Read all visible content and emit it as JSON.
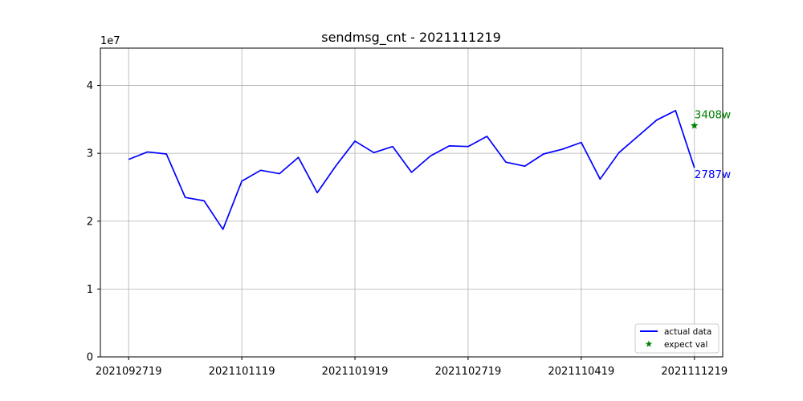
{
  "chart_data": {
    "type": "line",
    "title": "sendmsg_cnt - 2021111219",
    "xlabel": "",
    "ylabel": "",
    "y_scale_label": "1e7",
    "x_tick_labels": [
      "2021092719",
      "2021101119",
      "2021101919",
      "2021102719",
      "2021110419",
      "2021111219"
    ],
    "x_tick_index": [
      0,
      6,
      12,
      18,
      24,
      30
    ],
    "y_ticks": [
      0,
      1,
      2,
      3,
      4
    ],
    "ylim": [
      0,
      4.55
    ],
    "xlim": [
      -1.5,
      31.5
    ],
    "grid": true,
    "legend_position": "lower-right",
    "series": [
      {
        "name": "actual data",
        "color": "#0000ff",
        "values": [
          2.91,
          3.02,
          2.99,
          2.35,
          2.3,
          1.88,
          2.59,
          2.75,
          2.7,
          2.94,
          2.42,
          2.82,
          3.18,
          3.01,
          3.1,
          2.72,
          2.96,
          3.11,
          3.1,
          3.25,
          2.87,
          2.81,
          2.99,
          3.06,
          3.16,
          2.62,
          3.01,
          3.25,
          3.49,
          3.63,
          2.787
        ]
      },
      {
        "name": "expect val",
        "color": "#008000",
        "marker": "star",
        "points": [
          {
            "x": 30,
            "y": 3.408
          }
        ]
      }
    ],
    "annotations": [
      {
        "text": "3408w",
        "x": 30,
        "y": 3.408,
        "color": "#008000"
      },
      {
        "text": "2787w",
        "x": 30,
        "y": 2.787,
        "color": "#0000ff"
      }
    ]
  }
}
